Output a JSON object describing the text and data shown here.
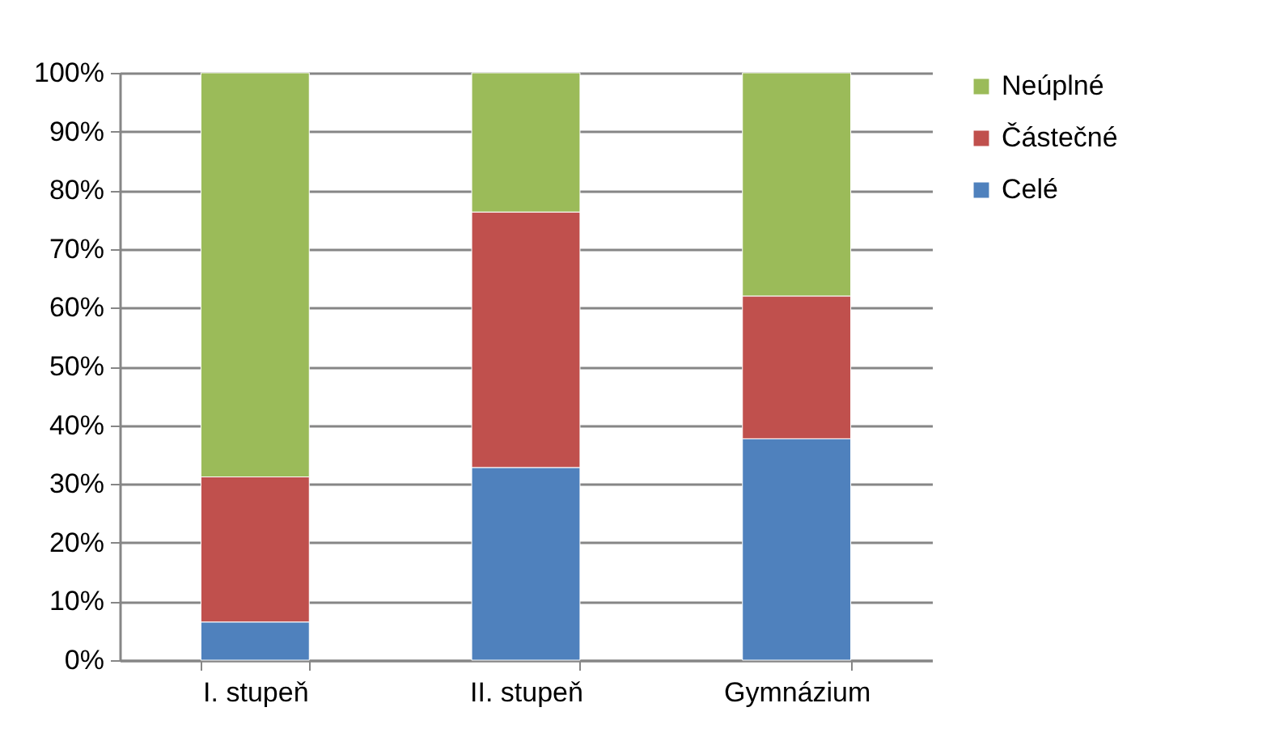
{
  "chart_data": {
    "type": "bar",
    "stacked": true,
    "categories": [
      "I. stupeň",
      "II. stupeň",
      "Gymnázium"
    ],
    "series": [
      {
        "name": "Celé",
        "color": "#4f81bd",
        "values": [
          6.5,
          32.8,
          37.7
        ]
      },
      {
        "name": "Částečné",
        "color": "#c0504d",
        "values": [
          24.7,
          43.5,
          24.3
        ]
      },
      {
        "name": "Neúplné",
        "color": "#9bbb59",
        "values": [
          68.8,
          23.7,
          38.0
        ]
      }
    ],
    "ylim": [
      0,
      100
    ],
    "yticks": [
      {
        "value": 0,
        "label": "0%"
      },
      {
        "value": 10,
        "label": "10%"
      },
      {
        "value": 20,
        "label": "20%"
      },
      {
        "value": 30,
        "label": "30%"
      },
      {
        "value": 40,
        "label": "40%"
      },
      {
        "value": 50,
        "label": "50%"
      },
      {
        "value": 60,
        "label": "60%"
      },
      {
        "value": 70,
        "label": "70%"
      },
      {
        "value": 80,
        "label": "80%"
      },
      {
        "value": 90,
        "label": "90%"
      },
      {
        "value": 100,
        "label": "100%"
      }
    ],
    "grid": "y",
    "legend": "right"
  }
}
